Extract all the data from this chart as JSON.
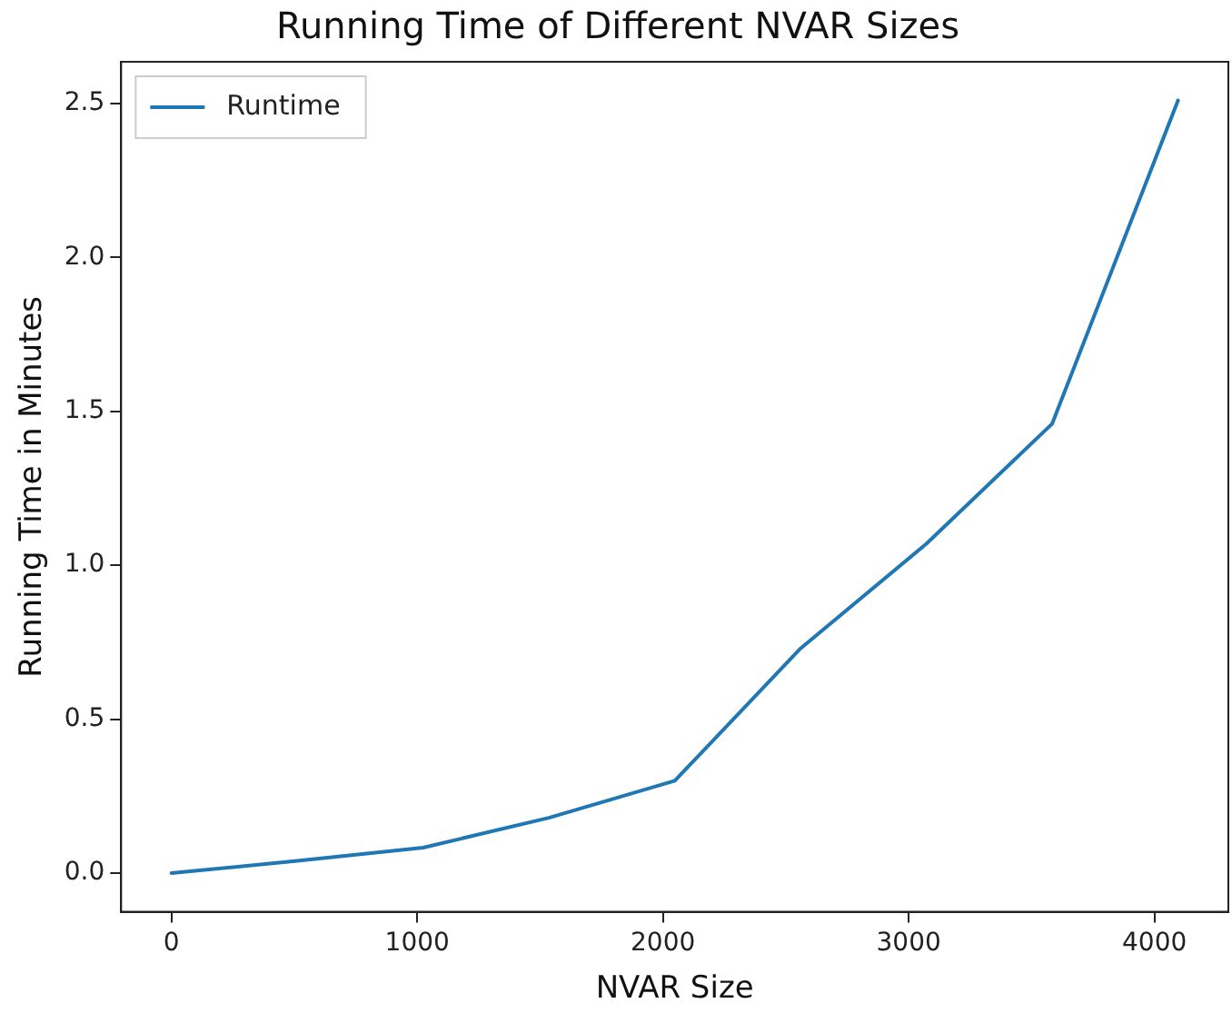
{
  "chart_data": {
    "type": "line",
    "title": "Running Time of Different NVAR Sizes",
    "xlabel": "NVAR Size",
    "ylabel": "Running Time in Minutes",
    "x": [
      0,
      512,
      1024,
      1536,
      2048,
      2560,
      3072,
      3584,
      4096
    ],
    "series": [
      {
        "name": "Runtime",
        "color": "#1f77b4",
        "values": [
          0,
          0.04,
          0.083,
          0.18,
          0.3,
          0.73,
          1.07,
          1.46,
          2.51
        ]
      }
    ],
    "xlim": [
      -204.8,
      4300.8
    ],
    "xticks": [
      0,
      1000,
      2000,
      3000,
      4000
    ],
    "ylim": [
      -0.1255,
      2.6355
    ],
    "yticks": [
      {
        "value": 0,
        "label": "0.0"
      },
      0.5,
      {
        "value": 1,
        "label": "1.0"
      },
      1.5,
      {
        "value": 2,
        "label": "2.0"
      },
      2.5
    ],
    "legend": "top left",
    "grid": false,
    "marker": "none",
    "line_style": "solid"
  }
}
